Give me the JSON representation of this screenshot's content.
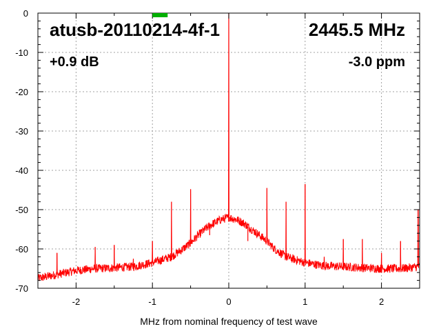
{
  "chart_data": {
    "type": "line",
    "title": "atusb-20110214-4f-1",
    "frequency_label": "2445.5 MHz",
    "gain_label": "+0.9 dB",
    "ppm_label": "-3.0 ppm",
    "xlabel": "MHz from nominal frequency of test wave",
    "ylabel": "",
    "xlim": [
      -2.5,
      2.5
    ],
    "ylim": [
      -70,
      0
    ],
    "x_ticks": [
      "-2",
      "-1",
      "0",
      "1",
      "2"
    ],
    "y_ticks": [
      "0",
      "-10",
      "-20",
      "-30",
      "-40",
      "-50",
      "-60",
      "-70"
    ],
    "grid": true,
    "series": [
      {
        "color": "#ff0000",
        "noise_floor": [
          [
            -2.5,
            -67.5
          ],
          [
            -2.25,
            -66.5
          ],
          [
            -2.0,
            -65.5
          ],
          [
            -1.75,
            -65.0
          ],
          [
            -1.5,
            -64.8
          ],
          [
            -1.25,
            -64.5
          ],
          [
            -1.0,
            -63.5
          ],
          [
            -0.75,
            -62.0
          ],
          [
            -0.6,
            -60.0
          ],
          [
            -0.5,
            -58.5
          ],
          [
            -0.4,
            -56.5
          ],
          [
            -0.3,
            -54.8
          ],
          [
            -0.2,
            -53.5
          ],
          [
            -0.1,
            -52.5
          ],
          [
            0.0,
            -52.0
          ],
          [
            0.1,
            -52.5
          ],
          [
            0.2,
            -53.5
          ],
          [
            0.3,
            -55.0
          ],
          [
            0.4,
            -56.5
          ],
          [
            0.5,
            -58.0
          ],
          [
            0.6,
            -60.0
          ],
          [
            0.75,
            -62.0
          ],
          [
            1.0,
            -63.5
          ],
          [
            1.25,
            -64.3
          ],
          [
            1.5,
            -64.5
          ],
          [
            1.75,
            -64.8
          ],
          [
            2.0,
            -65.0
          ],
          [
            2.25,
            -65.0
          ],
          [
            2.5,
            -64.5
          ]
        ],
        "spurs": [
          [
            -2.25,
            -61.0
          ],
          [
            -1.75,
            -59.5
          ],
          [
            -1.5,
            -59.0
          ],
          [
            -1.25,
            -62.5
          ],
          [
            -1.0,
            -58.0
          ],
          [
            -0.75,
            -48.0
          ],
          [
            -0.5,
            -44.8
          ],
          [
            -0.25,
            -56.5
          ],
          [
            0.0,
            0.0
          ],
          [
            0.25,
            -58.0
          ],
          [
            0.5,
            -44.5
          ],
          [
            0.75,
            -48.0
          ],
          [
            1.0,
            -43.5
          ],
          [
            1.25,
            -62.0
          ],
          [
            1.5,
            -57.5
          ],
          [
            1.75,
            -57.5
          ],
          [
            2.0,
            -61.0
          ],
          [
            2.25,
            -58.0
          ],
          [
            2.48,
            -50.0
          ]
        ]
      }
    ],
    "marker": {
      "x": -0.9,
      "color": "#00b000"
    }
  }
}
